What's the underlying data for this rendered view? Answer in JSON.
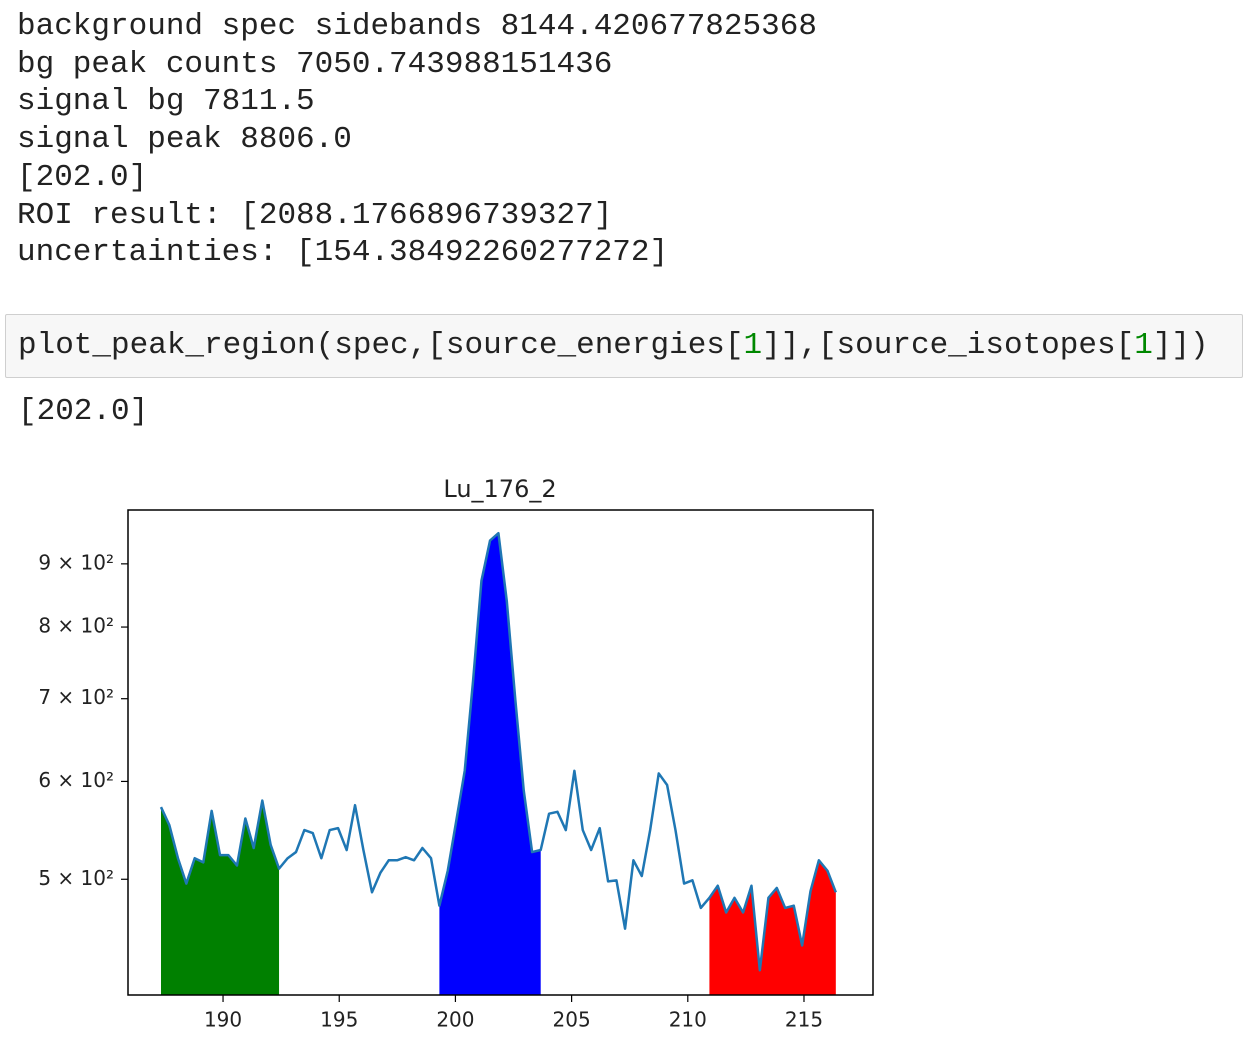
{
  "output_lines": [
    "background spec sidebands 8144.420677825368",
    "bg peak counts 7050.743988151436",
    "signal bg 7811.5",
    "signal peak 8806.0",
    "[202.0]",
    "ROI result: [2088.1766896739327]",
    "uncertainties: [154.38492260277272]"
  ],
  "code_cell": {
    "tokens": [
      "plot_peak_region(spec,[source_energies[",
      "1",
      "]],[source_isotopes[",
      "1",
      "]])"
    ]
  },
  "cell_output": "[202.0]",
  "chart_data": {
    "type": "line",
    "title": "Lu_176_2",
    "color": "#1f77b4",
    "yscale": "log",
    "x": [
      187.33,
      187.69,
      188.06,
      188.42,
      188.78,
      189.15,
      189.51,
      189.87,
      190.23,
      190.6,
      190.96,
      191.32,
      191.69,
      192.05,
      192.41,
      192.78,
      193.14,
      193.5,
      193.86,
      194.23,
      194.59,
      194.95,
      195.32,
      195.68,
      196.04,
      196.41,
      196.77,
      197.13,
      197.49,
      197.86,
      198.22,
      198.58,
      198.95,
      199.31,
      199.67,
      200.04,
      200.4,
      200.76,
      201.12,
      201.49,
      201.85,
      202.21,
      202.58,
      202.94,
      203.3,
      203.67,
      204.03,
      204.39,
      204.75,
      205.12,
      205.48,
      205.84,
      206.21,
      206.57,
      206.93,
      207.3,
      207.66,
      208.02,
      208.38,
      208.75,
      209.11,
      209.47,
      209.84,
      210.2,
      210.56,
      210.93,
      211.29,
      211.65,
      212.01,
      212.38,
      212.74,
      213.1,
      213.47,
      213.83,
      214.19,
      214.56,
      214.92,
      215.28,
      215.64,
      216.01,
      216.37
    ],
    "values": [
      572,
      553,
      520,
      496,
      520,
      516,
      568,
      523,
      523,
      513,
      560,
      530,
      579,
      533,
      510,
      520,
      526,
      548,
      545,
      520,
      548,
      550,
      528,
      574,
      528,
      488,
      506,
      518,
      518,
      521,
      518,
      530,
      520,
      476,
      508,
      558,
      612,
      724,
      872,
      940,
      953,
      840,
      698,
      590,
      526,
      528,
      565,
      567,
      548,
      612,
      548,
      528,
      550,
      498,
      499,
      456,
      518,
      503,
      548,
      609,
      596,
      548,
      496,
      499,
      474,
      483,
      494,
      470,
      483,
      470,
      494,
      422,
      483,
      492,
      474,
      476,
      442,
      489,
      518,
      508,
      488
    ],
    "fills": [
      {
        "color": "#008000",
        "from": 187.33,
        "to": 192.41
      },
      {
        "color": "#0000ff",
        "from": 199.31,
        "to": 203.67
      },
      {
        "color": "#ff0000",
        "from": 210.93,
        "to": 216.37
      }
    ],
    "xlim": [
      185.91,
      217.97
    ],
    "xticks": [
      190,
      195,
      200,
      205,
      210,
      215
    ],
    "ylim": [
      403,
      995
    ],
    "yticks": [
      {
        "value": 500,
        "label": "5 × 10²"
      },
      {
        "value": 600,
        "label": "6 × 10²"
      },
      {
        "value": 700,
        "label": "7 × 10²"
      },
      {
        "value": 800,
        "label": "8 × 10²"
      },
      {
        "value": 900,
        "label": "9 × 10²"
      }
    ]
  }
}
